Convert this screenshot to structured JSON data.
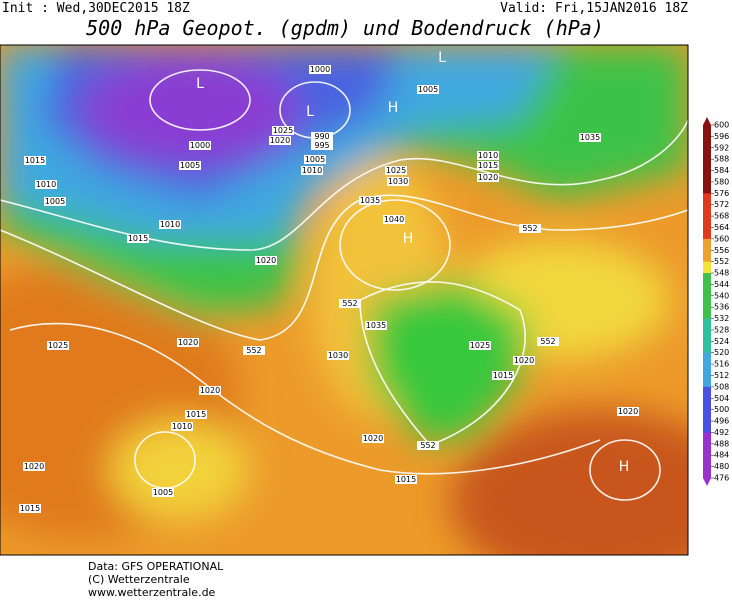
{
  "header": {
    "init": "Init : Wed,30DEC2015 18Z",
    "valid": "Valid: Fri,15JAN2016 18Z",
    "title": "500 hPa Geopot. (gpdm) und Bodendruck (hPa)"
  },
  "map": {
    "labels": [
      "1000",
      "L",
      "L",
      "1005",
      "L",
      "H",
      "1035",
      "1025",
      "1020",
      "990",
      "995",
      "1000",
      "1005",
      "1010",
      "1015",
      "1005",
      "1010",
      "1005",
      "1010",
      "1015",
      "1020",
      "1025",
      "1030",
      "1035",
      "1040",
      "H",
      "552",
      "1010",
      "1015",
      "1020",
      "552",
      "1035",
      "1030",
      "1020",
      "552",
      "1025",
      "1025",
      "552",
      "1020",
      "1015",
      "1020",
      "1015",
      "1010",
      "1020",
      "1020",
      "552",
      "1020",
      "1005",
      "1015",
      "1015",
      "H"
    ]
  },
  "colorbar": {
    "labels": [
      600,
      596,
      592,
      588,
      584,
      580,
      576,
      572,
      568,
      564,
      560,
      556,
      552,
      548,
      544,
      540,
      536,
      532,
      528,
      524,
      520,
      516,
      512,
      508,
      504,
      500,
      496,
      492,
      488,
      484,
      480,
      476
    ]
  },
  "footer": {
    "data": "Data: GFS OPERATIONAL",
    "copyright": "(C) Wetterzentrale",
    "url": "www.wetterzentrale.de"
  }
}
